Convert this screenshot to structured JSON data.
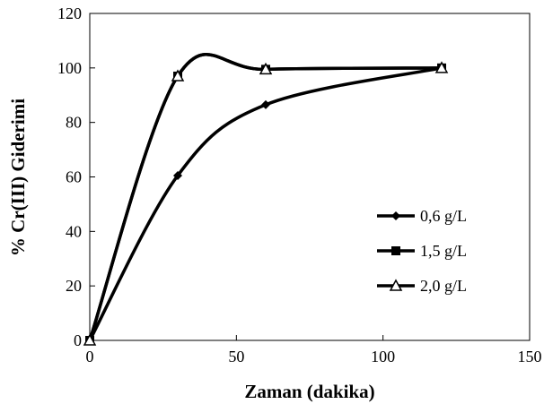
{
  "chart_data": {
    "type": "line",
    "title": "",
    "xlabel": "Zaman (dakika)",
    "ylabel": "% Cr(III)  Giderimi",
    "xlim": [
      0,
      150
    ],
    "ylim": [
      0,
      120
    ],
    "x_ticks": [
      "0",
      "50",
      "100",
      "150"
    ],
    "y_ticks": [
      "0",
      "20",
      "40",
      "60",
      "80",
      "100",
      "120"
    ],
    "grid": false,
    "legend_position": "right",
    "series": [
      {
        "name": "0,6 g/L",
        "marker": "diamond",
        "x": [
          0,
          30,
          60,
          120
        ],
        "y": [
          0,
          60.5,
          86.5,
          100
        ]
      },
      {
        "name": "1,5 g/L",
        "marker": "square",
        "x": [
          0,
          30,
          60,
          120
        ],
        "y": [
          0,
          97,
          99.5,
          100
        ]
      },
      {
        "name": "2,0 g/L",
        "marker": "triangle",
        "x": [
          0,
          30,
          60,
          120
        ],
        "y": [
          0,
          97,
          99.5,
          100
        ]
      }
    ]
  }
}
